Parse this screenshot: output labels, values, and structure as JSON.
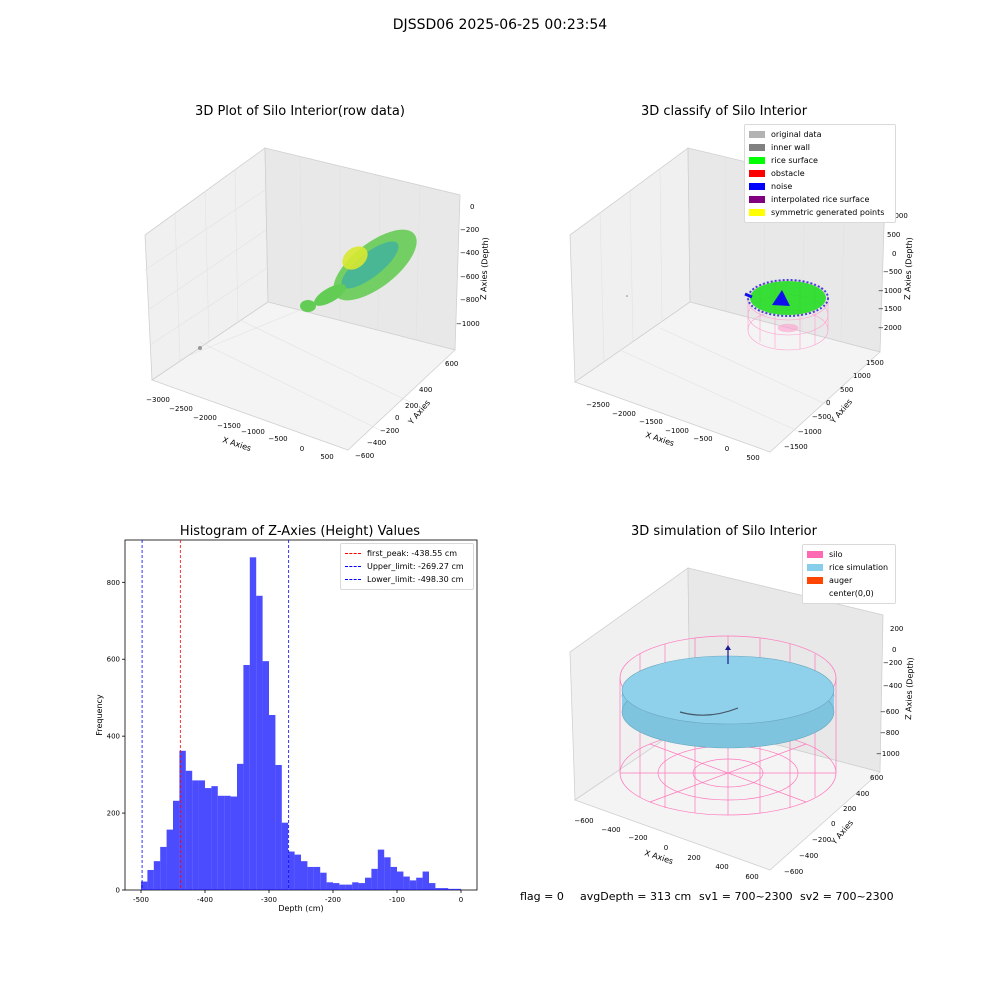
{
  "figure_title": "DJSSD06 2025-06-25 00:23:54",
  "footer": {
    "flag": "flag = 0",
    "avg_depth": "avgDepth = 313 cm",
    "sv1": "sv1 = 700~2300",
    "sv2": "sv2 = 700~2300"
  },
  "panels": {
    "raw": {
      "title": "3D Plot of Silo Interior(row data)",
      "xlabel": "X Axies",
      "ylabel": "Y Axies",
      "zlabel": "Z Axies (Depth)",
      "xticks": [
        "−3000",
        "−2500",
        "−2000",
        "−1500",
        "−1000",
        "−500",
        "0",
        "500"
      ],
      "yticks": [
        "600",
        "400",
        "200",
        "0",
        "−200",
        "−400",
        "−600"
      ],
      "zticks": [
        "0",
        "−200",
        "−400",
        "−600",
        "−800",
        "−1000"
      ]
    },
    "classify": {
      "title": "3D classify of Silo Interior",
      "xlabel": "X Axies",
      "ylabel": "Y Axies",
      "zlabel": "Z Axies (Depth)",
      "xticks": [
        "−2500",
        "−2000",
        "−1500",
        "−1000",
        "−500",
        "0",
        "500"
      ],
      "yticks": [
        "1500",
        "1000",
        "500",
        "0",
        "−500",
        "−1000",
        "−1500"
      ],
      "zticks": [
        "1000",
        "500",
        "0",
        "−500",
        "−1000",
        "−1500",
        "−2000"
      ],
      "legend": [
        {
          "label": "original data",
          "color": "#b3b3b3"
        },
        {
          "label": "inner wall",
          "color": "#808080"
        },
        {
          "label": "rice surface",
          "color": "#00ff00"
        },
        {
          "label": "obstacle",
          "color": "#ff0000"
        },
        {
          "label": "noise",
          "color": "#0000ff"
        },
        {
          "label": "interpolated rice surface",
          "color": "#800080"
        },
        {
          "label": "symmetric generated points",
          "color": "#ffff00"
        }
      ]
    },
    "simulation": {
      "title": "3D simulation of Silo Interior",
      "xlabel": "X Axies",
      "ylabel": "Y Axies",
      "zlabel": "Z Axies (Depth)",
      "xticks": [
        "−600",
        "−400",
        "−200",
        "0",
        "200",
        "400",
        "600"
      ],
      "yticks": [
        "600",
        "400",
        "200",
        "0",
        "−200",
        "−400",
        "−600"
      ],
      "zticks": [
        "200",
        "0",
        "−200",
        "−400",
        "−600",
        "−800",
        "−1000"
      ],
      "legend": [
        {
          "label": "silo",
          "color": "#ff69b4"
        },
        {
          "label": "rice simulation",
          "color": "#87ceeb"
        },
        {
          "label": "auger",
          "color": "#ff4500"
        },
        {
          "label": "center(0,0)",
          "color": ""
        }
      ]
    }
  },
  "chart_data": {
    "type": "bar",
    "title": "Histogram of Z-Axies (Height) Values",
    "xlabel": "Depth (cm)",
    "ylabel": "Frequency",
    "xlim": [
      -525,
      25
    ],
    "ylim": [
      0,
      910
    ],
    "xticks": [
      -500,
      -400,
      -300,
      -200,
      -100,
      0
    ],
    "yticks": [
      0,
      200,
      400,
      600,
      800
    ],
    "bar_color": "#0000ff",
    "bin_edges": [
      -500,
      -490,
      -480,
      -470,
      -460,
      -450,
      -440,
      -430,
      -420,
      -410,
      -400,
      -390,
      -380,
      -370,
      -360,
      -350,
      -340,
      -330,
      -320,
      -310,
      -300,
      -290,
      -280,
      -270,
      -260,
      -250,
      -240,
      -230,
      -220,
      -210,
      -200,
      -190,
      -180,
      -170,
      -160,
      -150,
      -140,
      -130,
      -120,
      -110,
      -100,
      -90,
      -80,
      -70,
      -60,
      -50,
      -40,
      -30,
      -20,
      -10,
      0
    ],
    "values": [
      22,
      52,
      75,
      112,
      157,
      232,
      362,
      310,
      285,
      285,
      265,
      270,
      245,
      245,
      243,
      328,
      585,
      865,
      765,
      595,
      455,
      325,
      175,
      100,
      92,
      75,
      60,
      60,
      45,
      20,
      18,
      14,
      14,
      20,
      18,
      32,
      55,
      105,
      85,
      60,
      48,
      35,
      25,
      32,
      48,
      18,
      5,
      5,
      3,
      3
    ],
    "lines": [
      {
        "label": "first_peak: -438.55 cm",
        "x": -438.55,
        "color": "#ff0000"
      },
      {
        "label": "Upper_limit: -269.27 cm",
        "x": -269.27,
        "color": "#0000ff"
      },
      {
        "label": "Lower_limit: -498.30 cm",
        "x": -498.3,
        "color": "#0000ff"
      }
    ]
  }
}
